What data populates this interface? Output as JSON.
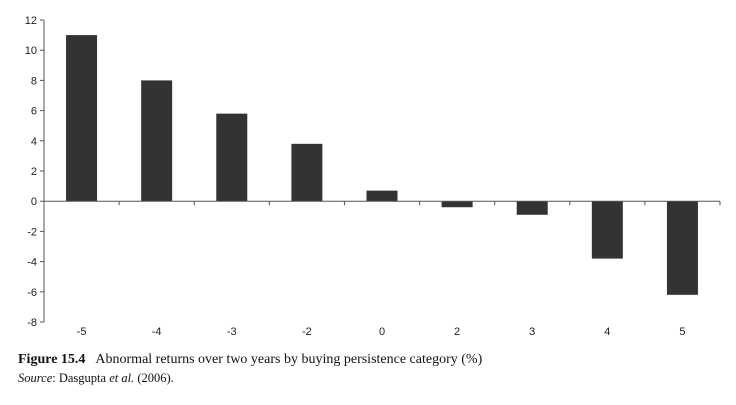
{
  "chart_data": {
    "type": "bar",
    "categories": [
      "-5",
      "-4",
      "-3",
      "-2",
      "0",
      "2",
      "3",
      "4",
      "5"
    ],
    "values": [
      11.0,
      8.0,
      5.8,
      3.8,
      0.7,
      -0.4,
      -0.9,
      -3.8,
      -6.2
    ],
    "title": "",
    "xlabel": "",
    "ylabel": "",
    "ylim": [
      -8,
      12
    ],
    "yticks": [
      12,
      10,
      8,
      6,
      4,
      2,
      0,
      -2,
      -4,
      -6,
      -8
    ],
    "grid": false,
    "bar_color": "#333333"
  },
  "caption": {
    "figure_label": "Figure  15.4",
    "text": "Abnormal returns over two years by buying persistence category (%)",
    "source_label": "Source",
    "source_pre": ": Dasgupta ",
    "source_italic": "et al.",
    "source_post": " (2006)."
  }
}
